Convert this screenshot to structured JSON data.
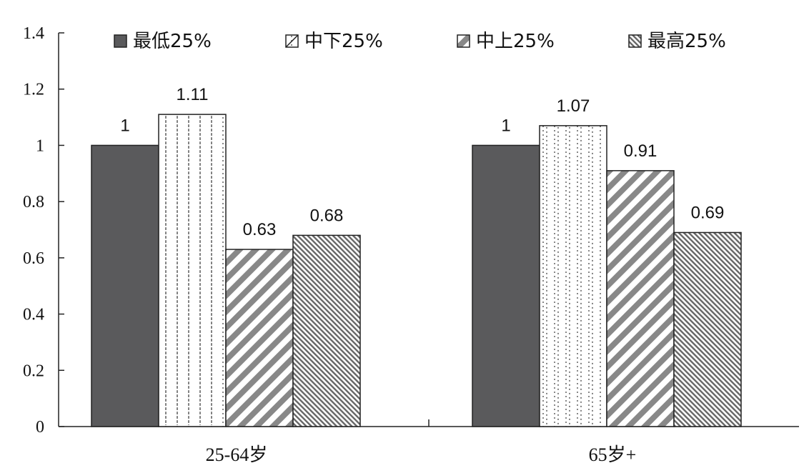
{
  "chart_data": {
    "type": "bar",
    "title": "",
    "xlabel": "",
    "ylabel": "",
    "ylim": [
      0,
      1.4
    ],
    "yticks": [
      0,
      0.2,
      0.4,
      0.6,
      0.8,
      1,
      1.2,
      1.4
    ],
    "ytick_labels": [
      "0",
      "0.2",
      "0.4",
      "0.6",
      "0.8",
      "1",
      "1.2",
      "1.4"
    ],
    "categories": [
      "25-64岁",
      "65岁+"
    ],
    "legend_position": "top",
    "series": [
      {
        "name": "最低25%",
        "values": [
          1,
          1
        ],
        "labels": [
          "1",
          "1"
        ],
        "pattern": "solid-dark",
        "color": "#5a5a5c"
      },
      {
        "name": "中下25%",
        "values": [
          1.11,
          1.07
        ],
        "labels": [
          "1.11",
          "1.07"
        ],
        "pattern": "dotted-vertical",
        "color": "#ffffff"
      },
      {
        "name": "中上25%",
        "values": [
          0.63,
          0.91
        ],
        "labels": [
          "0.63",
          "0.91"
        ],
        "pattern": "wide-diagonal",
        "color": "#8c8c8c"
      },
      {
        "name": "最高25%",
        "values": [
          0.68,
          0.69
        ],
        "labels": [
          "0.68",
          "0.69"
        ],
        "pattern": "fine-diagonal",
        "color": "#6f6f6f"
      }
    ]
  }
}
